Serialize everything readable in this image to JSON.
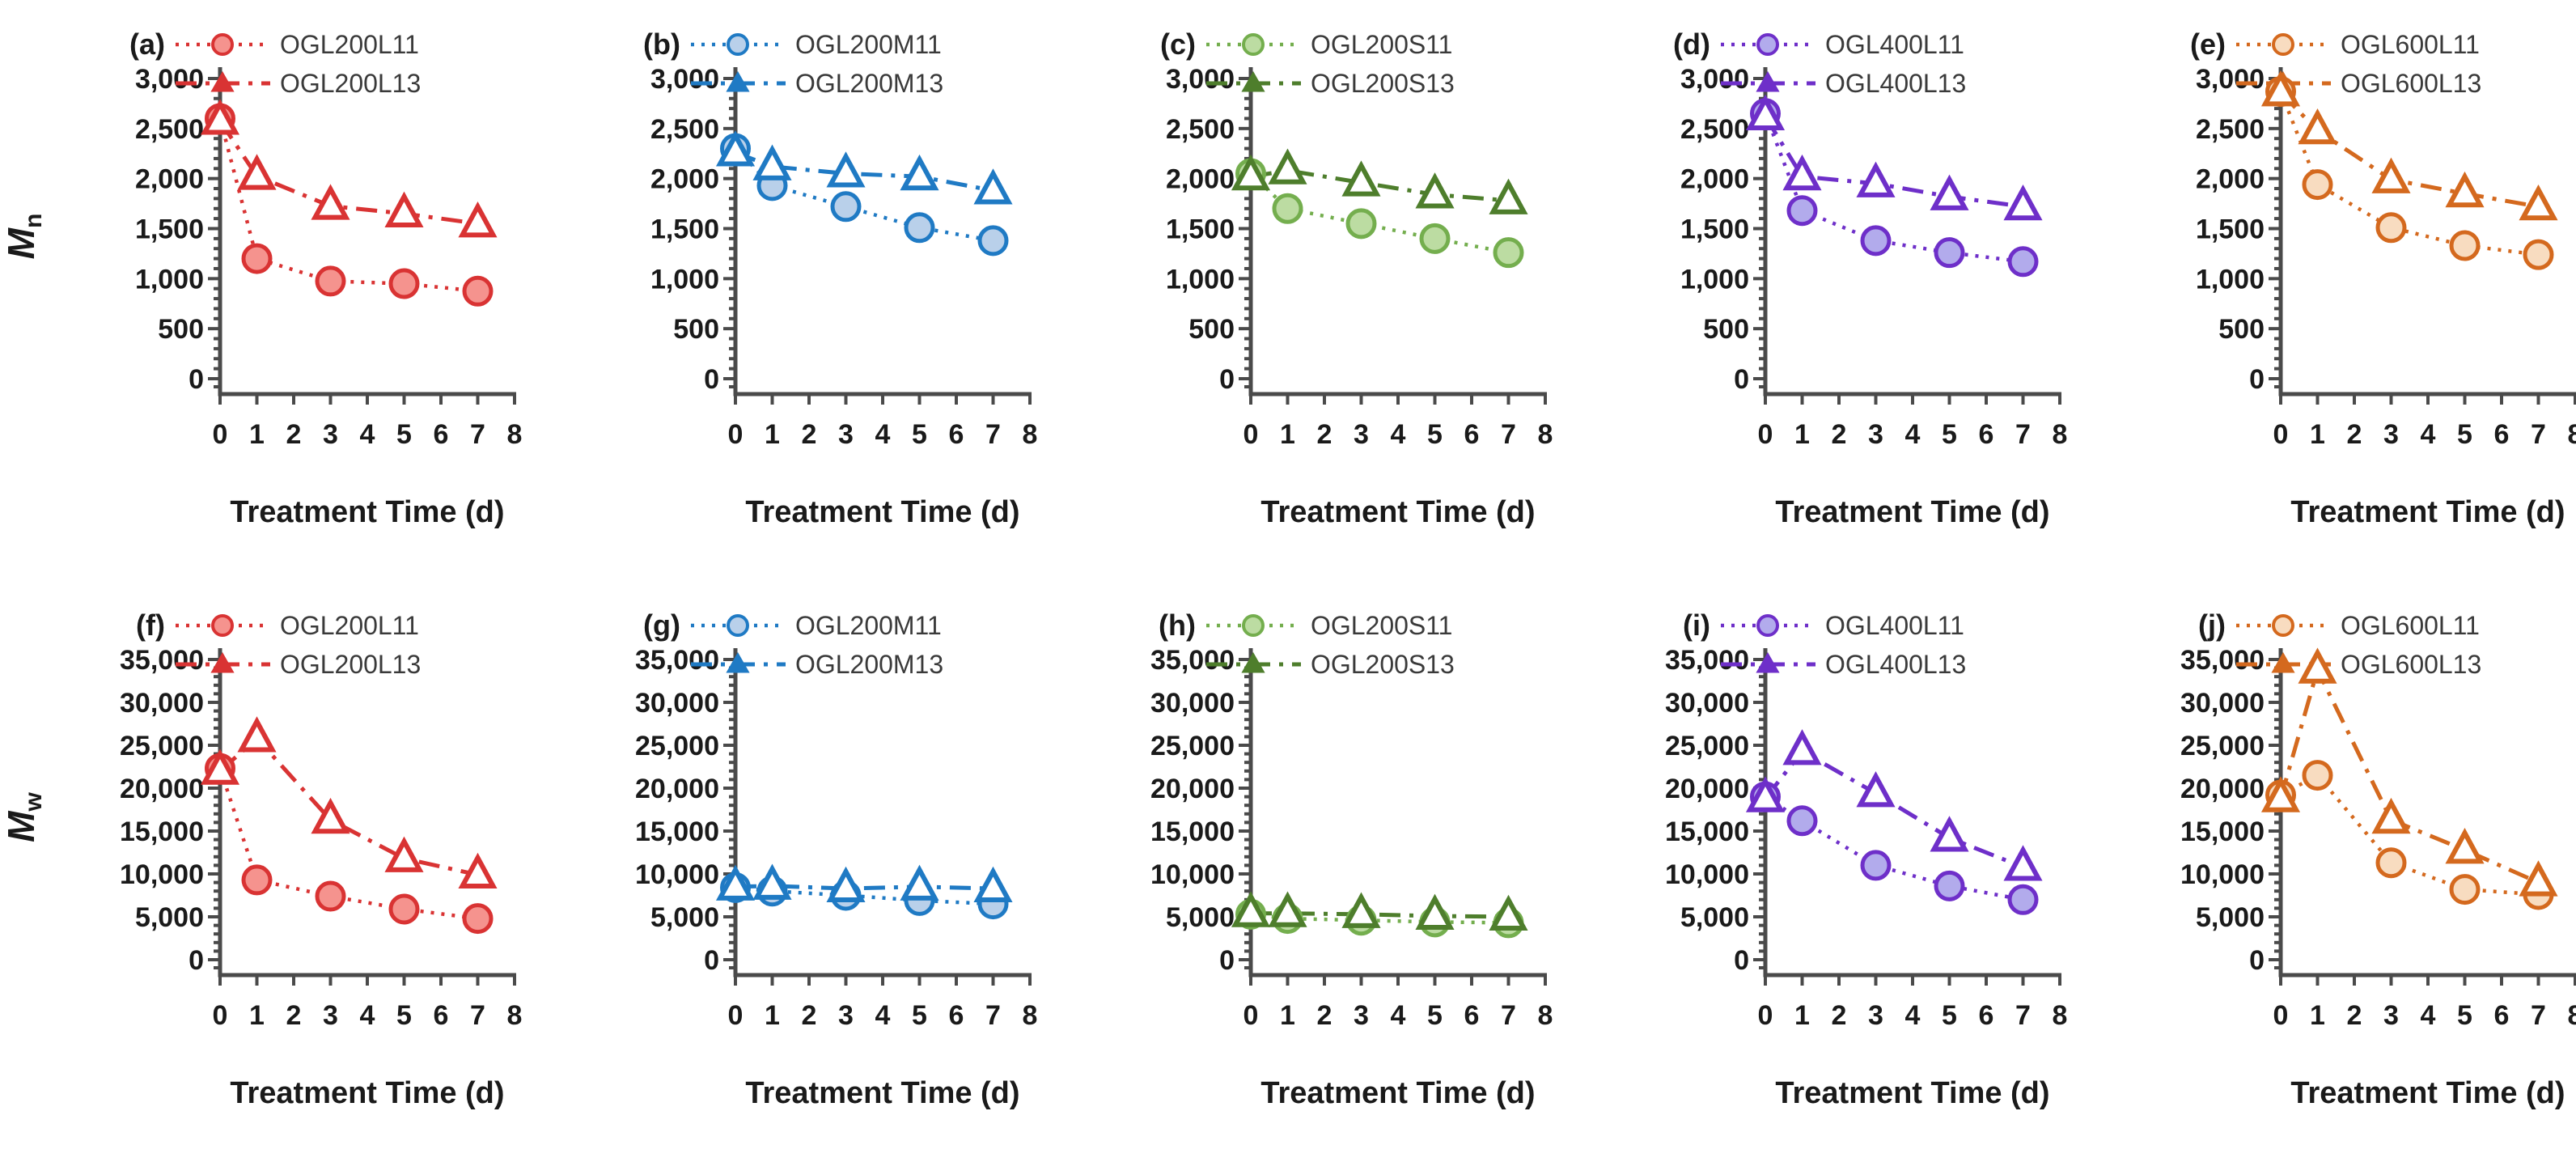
{
  "figure": {
    "xlabel": "Treatment Time (d)",
    "x_range": [
      0,
      8
    ],
    "x_ticks": [
      0,
      1,
      2,
      3,
      4,
      5,
      6,
      7,
      8
    ],
    "axis_color": "#4A4A4A",
    "text_color": "#1A1A1A",
    "legend_text_color": "#3A3A3A",
    "row_labels": [
      {
        "base": "M",
        "sub": "n"
      },
      {
        "base": "M",
        "sub": "w"
      }
    ]
  },
  "chart_data": [
    {
      "panel": "(a)",
      "type": "line",
      "xlabel": "Treatment Time (d)",
      "ylabel": {
        "base": "M",
        "sub": "n"
      },
      "ylim": [
        0,
        3000
      ],
      "yticks": [
        0,
        500,
        1000,
        1500,
        2000,
        2500,
        3000
      ],
      "ytick_minor": 100,
      "x": [
        0,
        1,
        3,
        5,
        7
      ],
      "series": [
        {
          "name": "OGL200L11",
          "marker": "circle",
          "linestyle": "dotted",
          "stroke": "#D93333",
          "fill": "#F5938E",
          "values": [
            2600,
            1200,
            975,
            950,
            875
          ]
        },
        {
          "name": "OGL200L13",
          "marker": "triangle",
          "linestyle": "dashdot",
          "stroke": "#D93333",
          "fill": "#FFFFFF",
          "values": [
            2575,
            2025,
            1725,
            1650,
            1550
          ]
        }
      ]
    },
    {
      "panel": "(b)",
      "type": "line",
      "xlabel": "Treatment Time (d)",
      "ylabel": null,
      "ylim": [
        0,
        3000
      ],
      "yticks": [
        0,
        500,
        1000,
        1500,
        2000,
        2500,
        3000
      ],
      "ytick_minor": 100,
      "x": [
        0,
        1,
        3,
        5,
        7
      ],
      "series": [
        {
          "name": "OGL200M11",
          "marker": "circle",
          "linestyle": "dotted",
          "stroke": "#1F7AC4",
          "fill": "#B9D0EA",
          "values": [
            2300,
            1930,
            1720,
            1510,
            1380
          ]
        },
        {
          "name": "OGL200M13",
          "marker": "triangle",
          "linestyle": "dashdot",
          "stroke": "#1F7AC4",
          "fill": "#FFFFFF",
          "values": [
            2260,
            2120,
            2050,
            2020,
            1880
          ]
        }
      ]
    },
    {
      "panel": "(c)",
      "type": "line",
      "xlabel": "Treatment Time (d)",
      "ylabel": null,
      "ylim": [
        0,
        3000
      ],
      "yticks": [
        0,
        500,
        1000,
        1500,
        2000,
        2500,
        3000
      ],
      "ytick_minor": 100,
      "x": [
        0,
        1,
        3,
        5,
        7
      ],
      "series": [
        {
          "name": "OGL200S11",
          "marker": "circle",
          "linestyle": "dotted",
          "stroke": "#74AE4E",
          "fill": "#BCDCA2",
          "values": [
            2050,
            1700,
            1550,
            1400,
            1260
          ]
        },
        {
          "name": "OGL200S13",
          "marker": "triangle",
          "linestyle": "dashdot",
          "stroke": "#4E7E2C",
          "fill": "#FFFFFF",
          "values": [
            2020,
            2080,
            1960,
            1840,
            1780
          ]
        }
      ]
    },
    {
      "panel": "(d)",
      "type": "line",
      "xlabel": "Treatment Time (d)",
      "ylabel": null,
      "ylim": [
        0,
        3000
      ],
      "yticks": [
        0,
        500,
        1000,
        1500,
        2000,
        2500,
        3000
      ],
      "ytick_minor": 100,
      "x": [
        0,
        1,
        3,
        5,
        7
      ],
      "series": [
        {
          "name": "OGL400L11",
          "marker": "circle",
          "linestyle": "dotted",
          "stroke": "#6E2FC9",
          "fill": "#B2ABEC",
          "values": [
            2650,
            1680,
            1380,
            1260,
            1170
          ]
        },
        {
          "name": "OGL400L13",
          "marker": "triangle",
          "linestyle": "dashdot",
          "stroke": "#6E2FC9",
          "fill": "#FFFFFF",
          "values": [
            2620,
            2020,
            1950,
            1820,
            1720
          ]
        }
      ]
    },
    {
      "panel": "(e)",
      "type": "line",
      "xlabel": "Treatment Time (d)",
      "ylabel": null,
      "ylim": [
        0,
        3000
      ],
      "yticks": [
        0,
        500,
        1000,
        1500,
        2000,
        2500,
        3000
      ],
      "ytick_minor": 100,
      "x": [
        0,
        1,
        3,
        5,
        7
      ],
      "series": [
        {
          "name": "OGL600L11",
          "marker": "circle",
          "linestyle": "dotted",
          "stroke": "#D4691E",
          "fill": "#F8DCC0",
          "values": [
            2870,
            1940,
            1510,
            1330,
            1240
          ]
        },
        {
          "name": "OGL600L13",
          "marker": "triangle",
          "linestyle": "dashdot",
          "stroke": "#D4691E",
          "fill": "#FFFFFF",
          "values": [
            2860,
            2480,
            1990,
            1850,
            1720
          ]
        }
      ]
    },
    {
      "panel": "(f)",
      "type": "line",
      "xlabel": "Treatment Time (d)",
      "ylabel": {
        "base": "M",
        "sub": "w"
      },
      "ylim": [
        0,
        35000
      ],
      "yticks": [
        0,
        5000,
        10000,
        15000,
        20000,
        25000,
        30000,
        35000
      ],
      "ytick_minor": 1000,
      "x": [
        0,
        1,
        3,
        5,
        7
      ],
      "series": [
        {
          "name": "OGL200L11",
          "marker": "circle",
          "linestyle": "dotted",
          "stroke": "#D93333",
          "fill": "#F5938E",
          "values": [
            22300,
            9300,
            7400,
            5900,
            4800
          ]
        },
        {
          "name": "OGL200L13",
          "marker": "triangle",
          "linestyle": "dashdot",
          "stroke": "#D93333",
          "fill": "#FFFFFF",
          "values": [
            22000,
            25800,
            16300,
            11800,
            9900
          ]
        }
      ]
    },
    {
      "panel": "(g)",
      "type": "line",
      "xlabel": "Treatment Time (d)",
      "ylabel": null,
      "ylim": [
        0,
        35000
      ],
      "yticks": [
        0,
        5000,
        10000,
        15000,
        20000,
        25000,
        30000,
        35000
      ],
      "ytick_minor": 1000,
      "x": [
        0,
        1,
        3,
        5,
        7
      ],
      "series": [
        {
          "name": "OGL200M11",
          "marker": "circle",
          "linestyle": "dotted",
          "stroke": "#1F7AC4",
          "fill": "#B9D0EA",
          "values": [
            8400,
            8000,
            7500,
            6900,
            6500
          ]
        },
        {
          "name": "OGL200M13",
          "marker": "triangle",
          "linestyle": "dashdot",
          "stroke": "#1F7AC4",
          "fill": "#FFFFFF",
          "values": [
            8500,
            8600,
            8300,
            8500,
            8300
          ]
        }
      ]
    },
    {
      "panel": "(h)",
      "type": "line",
      "xlabel": "Treatment Time (d)",
      "ylabel": null,
      "ylim": [
        0,
        35000
      ],
      "yticks": [
        0,
        5000,
        10000,
        15000,
        20000,
        25000,
        30000,
        35000
      ],
      "ytick_minor": 1000,
      "x": [
        0,
        1,
        3,
        5,
        7
      ],
      "series": [
        {
          "name": "OGL200S11",
          "marker": "circle",
          "linestyle": "dotted",
          "stroke": "#74AE4E",
          "fill": "#BCDCA2",
          "values": [
            5300,
            4800,
            4600,
            4400,
            4300
          ]
        },
        {
          "name": "OGL200S13",
          "marker": "triangle",
          "linestyle": "dashdot",
          "stroke": "#4E7E2C",
          "fill": "#FFFFFF",
          "values": [
            5400,
            5400,
            5300,
            5100,
            5000
          ]
        }
      ]
    },
    {
      "panel": "(i)",
      "type": "line",
      "xlabel": "Treatment Time (d)",
      "ylabel": null,
      "ylim": [
        0,
        35000
      ],
      "yticks": [
        0,
        5000,
        10000,
        15000,
        20000,
        25000,
        30000,
        35000
      ],
      "ytick_minor": 1000,
      "x": [
        0,
        1,
        3,
        5,
        7
      ],
      "series": [
        {
          "name": "OGL400L11",
          "marker": "circle",
          "linestyle": "dotted",
          "stroke": "#6E2FC9",
          "fill": "#B2ABEC",
          "values": [
            19000,
            16200,
            11000,
            8600,
            7000
          ]
        },
        {
          "name": "OGL400L13",
          "marker": "triangle",
          "linestyle": "dashdot",
          "stroke": "#6E2FC9",
          "fill": "#FFFFFF",
          "values": [
            18800,
            24300,
            19400,
            14200,
            10800
          ]
        }
      ]
    },
    {
      "panel": "(j)",
      "type": "line",
      "xlabel": "Treatment Time (d)",
      "ylabel": null,
      "ylim": [
        0,
        35000
      ],
      "yticks": [
        0,
        5000,
        10000,
        15000,
        20000,
        25000,
        30000,
        35000
      ],
      "ytick_minor": 1000,
      "x": [
        0,
        1,
        3,
        5,
        7
      ],
      "series": [
        {
          "name": "OGL600L11",
          "marker": "circle",
          "linestyle": "dotted",
          "stroke": "#D4691E",
          "fill": "#F8DCC0",
          "values": [
            19200,
            21500,
            11300,
            8200,
            7600
          ]
        },
        {
          "name": "OGL600L13",
          "marker": "triangle",
          "linestyle": "dashdot",
          "stroke": "#D4691E",
          "fill": "#FFFFFF",
          "values": [
            18800,
            33800,
            16300,
            12800,
            9000
          ]
        }
      ]
    }
  ]
}
